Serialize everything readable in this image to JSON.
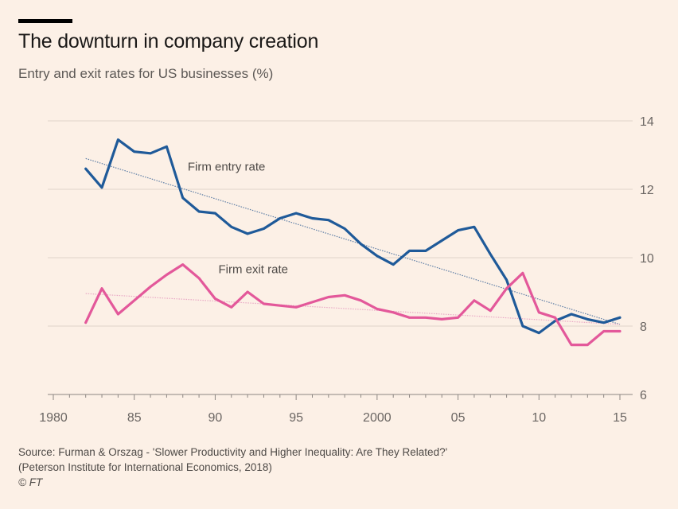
{
  "header": {
    "title": "The downturn in company creation",
    "subtitle": "Entry and exit rates for US businesses (%)"
  },
  "footer": {
    "source_line1": "Source: Furman & Orszag - 'Slower Productivity and Higher Inequality: Are They Related?'",
    "source_line2": "(Peterson Institute for International Economics, 2018)",
    "credit": "© FT"
  },
  "colors": {
    "background": "#fcf0e6",
    "entry": "#1f5a99",
    "exit": "#e3589a",
    "gridline": "#e0d5cb"
  },
  "chart_data": {
    "type": "line",
    "title": "The downturn in company creation",
    "subtitle": "Entry and exit rates for US businesses (%)",
    "xlim": [
      1980,
      2015.5
    ],
    "ylim": [
      6,
      14
    ],
    "x_ticks": [
      {
        "value": 1980,
        "label": "1980"
      },
      {
        "value": 1985,
        "label": "85"
      },
      {
        "value": 1990,
        "label": "90"
      },
      {
        "value": 1995,
        "label": "95"
      },
      {
        "value": 2000,
        "label": "2000"
      },
      {
        "value": 2005,
        "label": "05"
      },
      {
        "value": 2010,
        "label": "10"
      },
      {
        "value": 2015,
        "label": "15"
      }
    ],
    "y_ticks": [
      {
        "value": 6,
        "label": "6"
      },
      {
        "value": 8,
        "label": "8"
      },
      {
        "value": 10,
        "label": "10"
      },
      {
        "value": 12,
        "label": "12"
      },
      {
        "value": 14,
        "label": "14"
      }
    ],
    "grid": true,
    "y_axis_side": "right",
    "series": [
      {
        "name": "Firm entry rate",
        "x": [
          1982,
          1983,
          1984,
          1985,
          1986,
          1987,
          1988,
          1989,
          1990,
          1991,
          1992,
          1993,
          1994,
          1995,
          1996,
          1997,
          1998,
          1999,
          2000,
          2001,
          2002,
          2003,
          2004,
          2005,
          2006,
          2007,
          2008,
          2009,
          2010,
          2011,
          2012,
          2013,
          2014,
          2015
        ],
        "values": [
          12.6,
          12.05,
          13.45,
          13.1,
          13.05,
          13.25,
          11.75,
          11.35,
          11.3,
          10.9,
          10.7,
          10.85,
          11.15,
          11.3,
          11.15,
          11.1,
          10.85,
          10.4,
          10.05,
          9.8,
          10.2,
          10.2,
          10.5,
          10.8,
          10.9,
          10.1,
          9.35,
          8.0,
          7.8,
          8.15,
          8.35,
          8.2,
          8.1,
          8.25
        ],
        "trend": {
          "x": [
            1982,
            2015
          ],
          "values": [
            12.9,
            8.05
          ]
        }
      },
      {
        "name": "Firm exit rate",
        "x": [
          1982,
          1983,
          1984,
          1985,
          1986,
          1987,
          1988,
          1989,
          1990,
          1991,
          1992,
          1993,
          1994,
          1995,
          1996,
          1997,
          1998,
          1999,
          2000,
          2001,
          2002,
          2003,
          2004,
          2005,
          2006,
          2007,
          2008,
          2009,
          2010,
          2011,
          2012,
          2013,
          2014,
          2015
        ],
        "values": [
          8.1,
          9.1,
          8.35,
          8.75,
          9.15,
          9.5,
          9.8,
          9.4,
          8.8,
          8.55,
          9.0,
          8.65,
          8.6,
          8.55,
          8.7,
          8.85,
          8.9,
          8.75,
          8.5,
          8.4,
          8.25,
          8.25,
          8.2,
          8.25,
          8.75,
          8.45,
          9.1,
          9.55,
          8.4,
          8.25,
          7.45,
          7.45,
          7.85,
          7.85
        ],
        "trend": {
          "x": [
            1982,
            2015
          ],
          "values": [
            8.95,
            8.05
          ]
        }
      }
    ]
  }
}
